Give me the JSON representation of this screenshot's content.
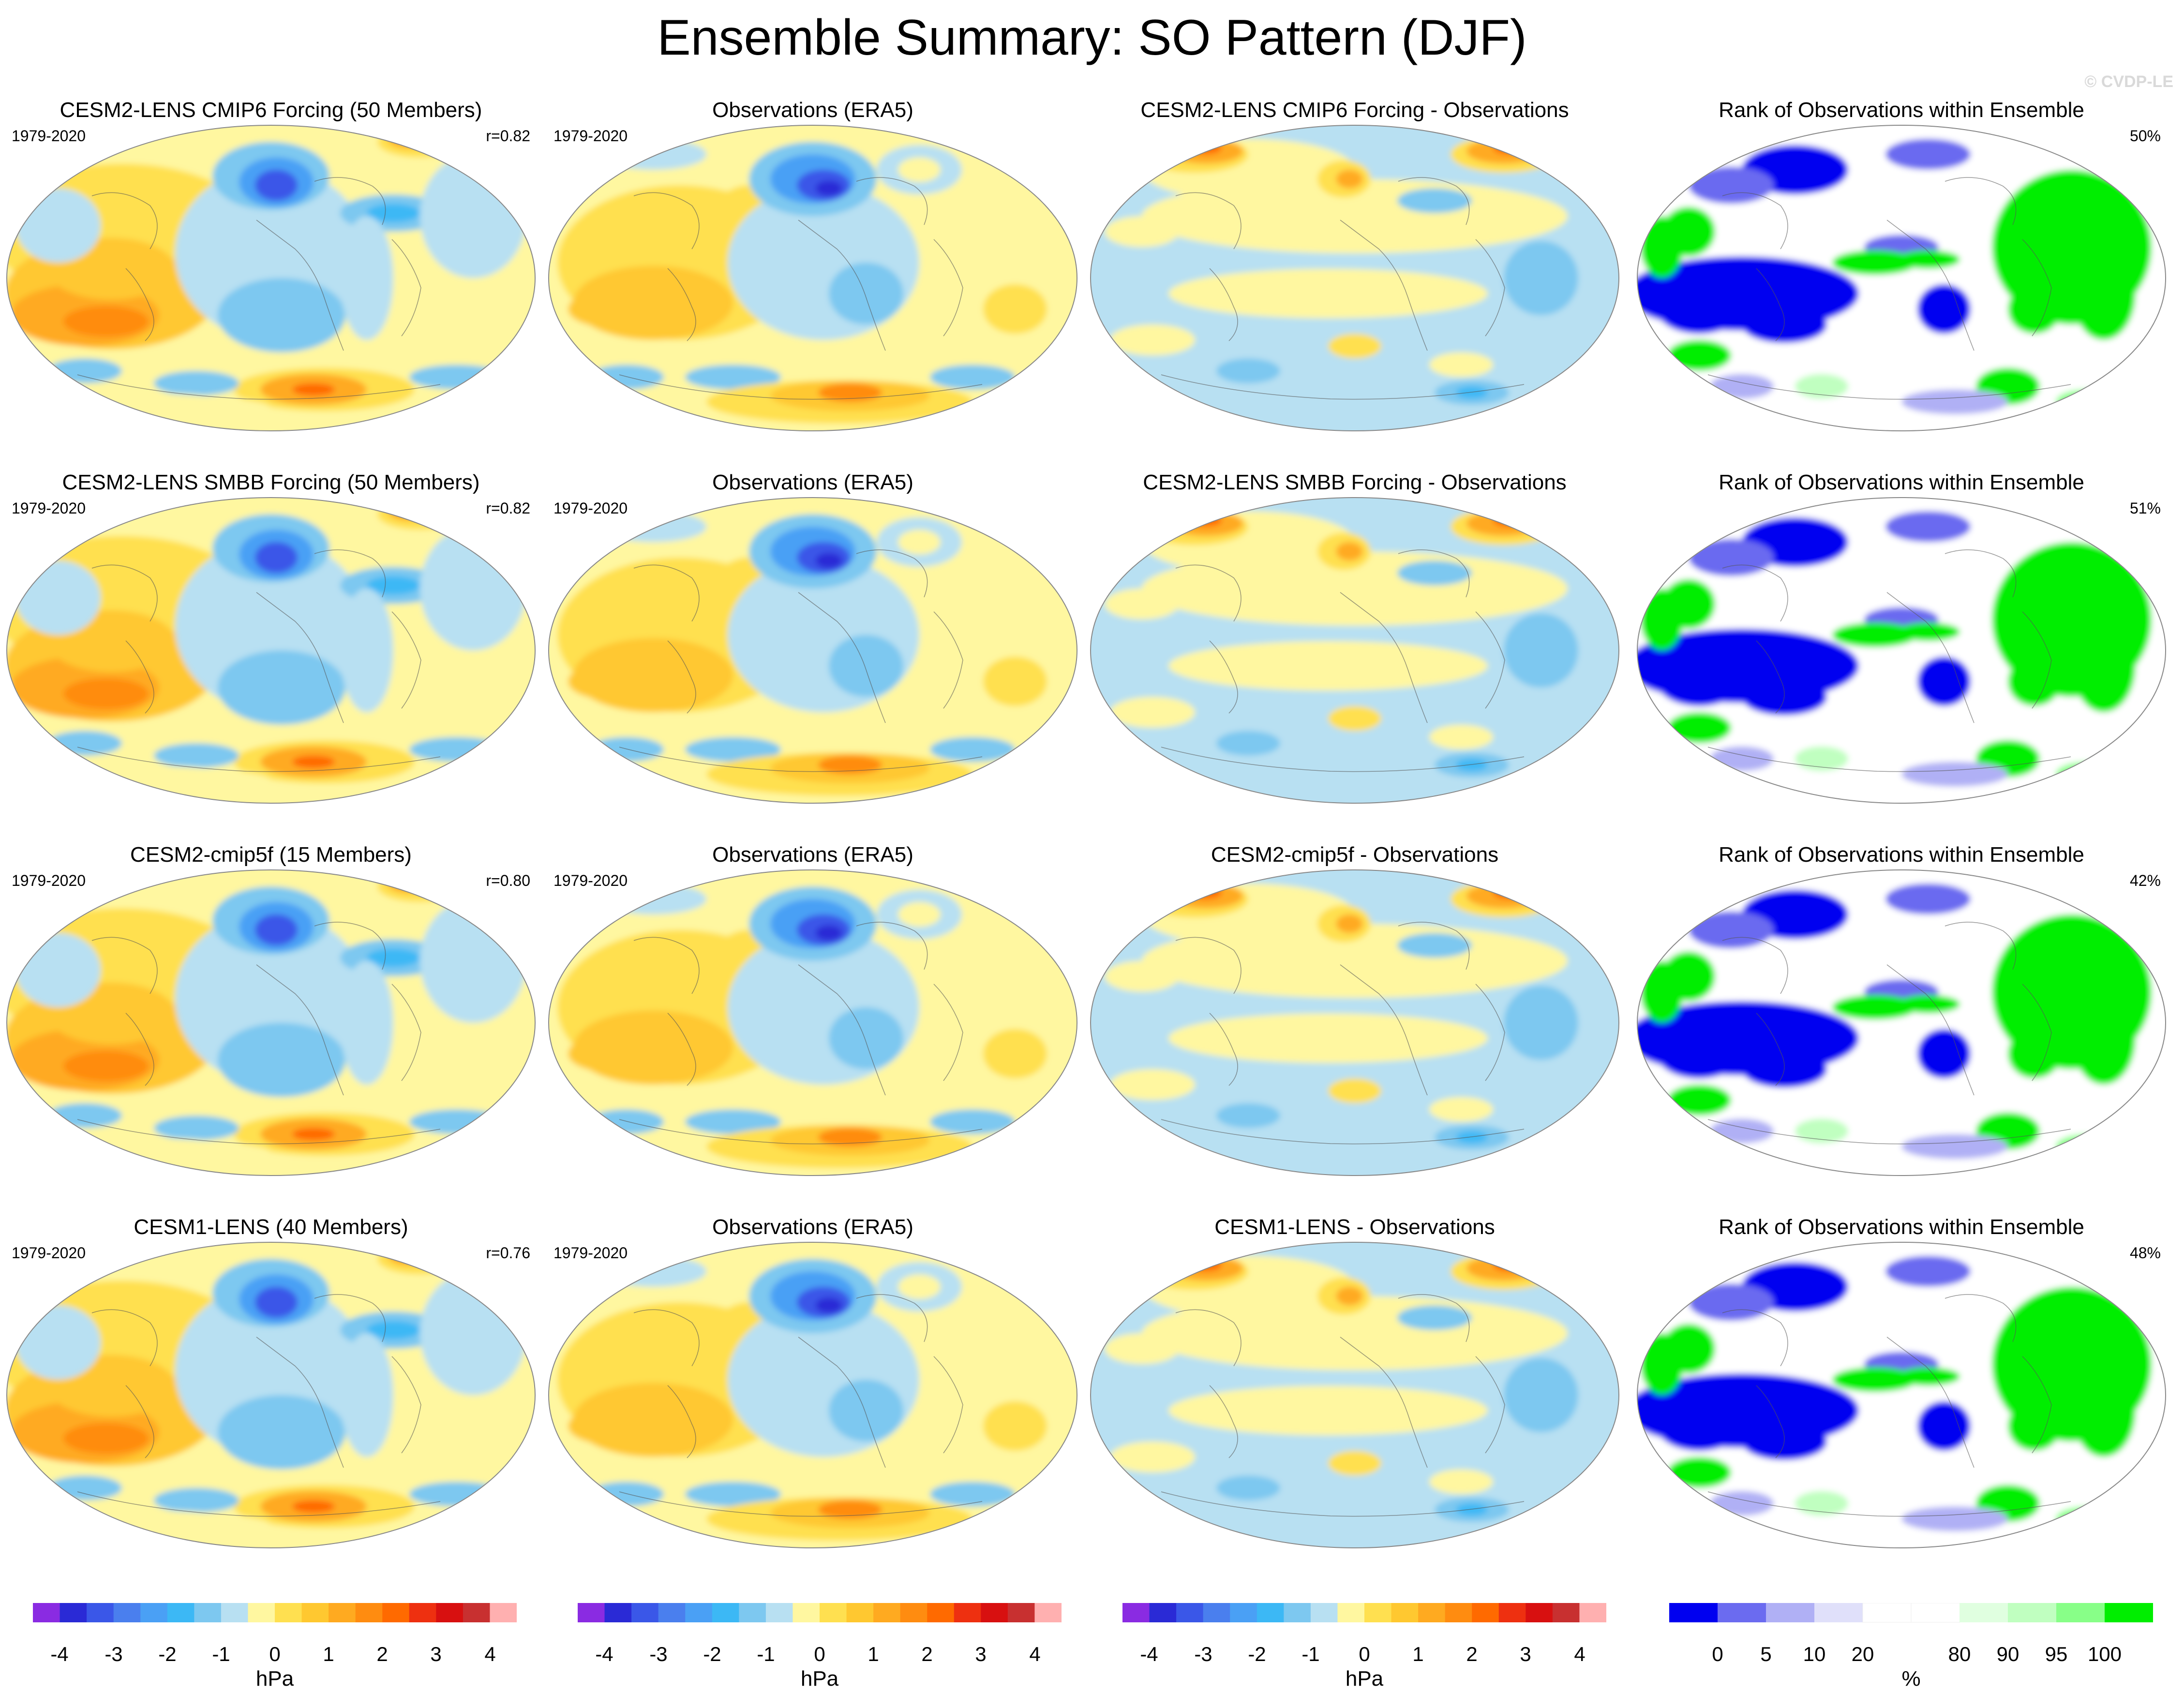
{
  "title": "Ensemble Summary: SO Pattern (DJF)",
  "copyright": "© CVDP-LE",
  "rows": [
    {
      "model": {
        "title": "CESM2-LENS CMIP6 Forcing (50 Members)",
        "period": "1979-2020",
        "r": "r=0.82"
      },
      "obs": {
        "title": "Observations (ERA5)",
        "period": "1979-2020"
      },
      "diff": {
        "title": "CESM2-LENS CMIP6 Forcing - Observations"
      },
      "rank": {
        "title": "Rank of Observations within Ensemble",
        "pct": "50%"
      }
    },
    {
      "model": {
        "title": "CESM2-LENS SMBB Forcing (50 Members)",
        "period": "1979-2020",
        "r": "r=0.82"
      },
      "obs": {
        "title": "Observations (ERA5)",
        "period": "1979-2020"
      },
      "diff": {
        "title": "CESM2-LENS SMBB Forcing - Observations"
      },
      "rank": {
        "title": "Rank of Observations within Ensemble",
        "pct": "51%"
      }
    },
    {
      "model": {
        "title": "CESM2-cmip5f (15 Members)",
        "period": "1979-2020",
        "r": "r=0.80"
      },
      "obs": {
        "title": "Observations (ERA5)",
        "period": "1979-2020"
      },
      "diff": {
        "title": "CESM2-cmip5f - Observations"
      },
      "rank": {
        "title": "Rank of Observations within Ensemble",
        "pct": "42%"
      }
    },
    {
      "model": {
        "title": "CESM1-LENS (40 Members)",
        "period": "1979-2020",
        "r": "r=0.76"
      },
      "obs": {
        "title": "Observations (ERA5)",
        "period": "1979-2020"
      },
      "diff": {
        "title": "CESM1-LENS - Observations"
      },
      "rank": {
        "title": "Rank of Observations within Ensemble",
        "pct": "48%"
      }
    }
  ],
  "colorbars": {
    "slp": {
      "unit": "hPa",
      "colors": [
        "#8a2be2",
        "#2a2ad6",
        "#3a57e8",
        "#4a7fee",
        "#4aa0f5",
        "#3cb8f5",
        "#7dc8f0",
        "#b8e0f2",
        "#fff7a0",
        "#ffe050",
        "#ffc830",
        "#ffaa20",
        "#ff8c10",
        "#ff6a00",
        "#ee3010",
        "#d81010",
        "#c83030",
        "#ffb0b0"
      ],
      "labels": [
        "-4",
        "-3",
        "-2",
        "-1",
        "0",
        "1",
        "2",
        "3",
        "4"
      ]
    },
    "rank": {
      "unit": "%",
      "colors": [
        "#0000f0",
        "#6b6bf0",
        "#b0b0f5",
        "#e0e0fa",
        "#ffffff",
        "#ffffff",
        "#e0ffe0",
        "#c0ffc0",
        "#88ff88",
        "#00ee00"
      ],
      "labels": [
        "0",
        "5",
        "10",
        "20",
        "80",
        "90",
        "95",
        "100"
      ]
    }
  }
}
